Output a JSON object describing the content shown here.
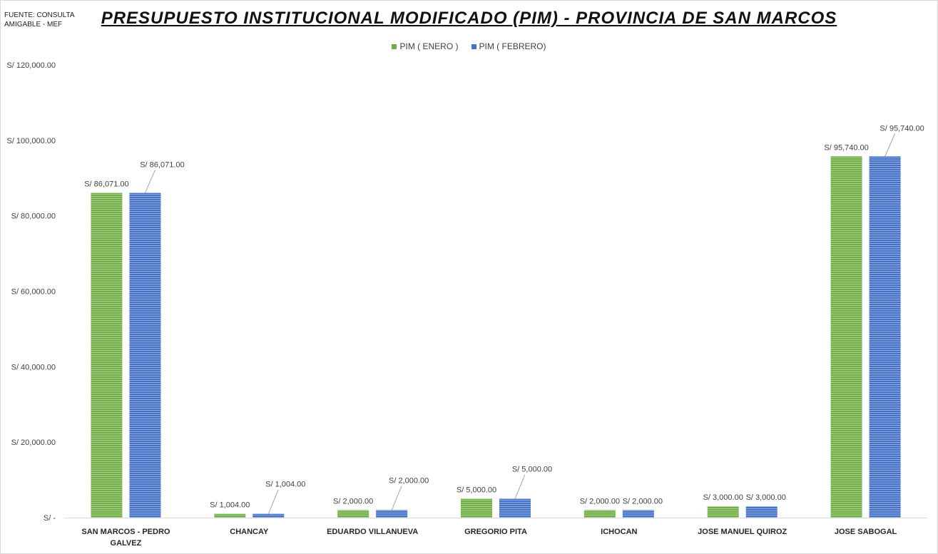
{
  "source_note": "FUENTE: CONSULTA AMIGABLE - MEF",
  "colors": {
    "enero": "#70ad47",
    "febrero": "#4472c4",
    "stripe_enero": "#a9d18e",
    "stripe_febrero": "#8faadc",
    "axis_text": "#404040"
  },
  "chart_data": {
    "type": "bar",
    "title": "PRESUPUESTO INSTITUCIONAL MODIFICADO (PIM) - PROVINCIA DE SAN MARCOS",
    "categories": [
      "SAN MARCOS - PEDRO GALVEZ",
      "CHANCAY",
      "EDUARDO VILLANUEVA",
      "GREGORIO PITA",
      "ICHOCAN",
      "JOSE MANUEL QUIROZ",
      "JOSE SABOGAL"
    ],
    "category_lines": [
      [
        "SAN MARCOS - PEDRO",
        "GALVEZ"
      ],
      [
        "CHANCAY"
      ],
      [
        "EDUARDO VILLANUEVA"
      ],
      [
        "GREGORIO PITA"
      ],
      [
        "ICHOCAN"
      ],
      [
        "JOSE MANUEL QUIROZ"
      ],
      [
        "JOSE SABOGAL"
      ]
    ],
    "series": [
      {
        "name": "PIM ( ENERO )",
        "values": [
          86071,
          1004,
          2000,
          5000,
          2000,
          3000,
          95740
        ],
        "labels": [
          "S/ 86,071.00",
          "S/ 1,004.00",
          "S/ 2,000.00",
          "S/ 5,000.00",
          "S/ 2,000.00",
          "S/ 3,000.00",
          "S/ 95,740.00"
        ]
      },
      {
        "name": "PIM ( FEBRERO)",
        "values": [
          86071,
          1004,
          2000,
          5000,
          2000,
          3000,
          95740
        ],
        "labels": [
          "S/ 86,071.00",
          "S/ 1,004.00",
          "S/ 2,000.00",
          "S/ 5,000.00",
          "S/ 2,000.00",
          "S/ 3,000.00",
          "S/ 95,740.00"
        ]
      }
    ],
    "ylim": [
      0,
      120000
    ],
    "yticks": [
      0,
      20000,
      40000,
      60000,
      80000,
      100000,
      120000
    ],
    "ytick_labels": [
      "S/ -",
      "S/ 20,000.00",
      "S/ 40,000.00",
      "S/ 60,000.00",
      "S/ 80,000.00",
      "S/ 100,000.00",
      "S/ 120,000.00"
    ],
    "grid": false,
    "legend_position": "top-center"
  }
}
